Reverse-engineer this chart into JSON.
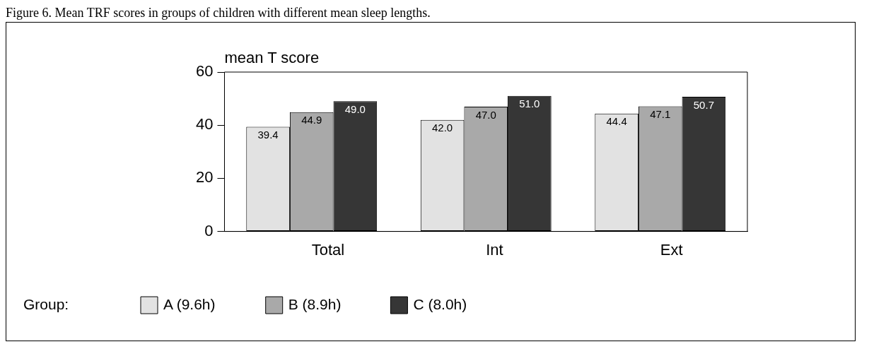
{
  "chart_data": {
    "type": "bar",
    "title": "Figure 6. Mean TRF scores in groups of children with different mean sleep lengths.",
    "ylabel": "mean T score",
    "categories": [
      "Total",
      "Int",
      "Ext"
    ],
    "series": [
      {
        "name": "A (9.6h)",
        "color": "#e2e2e2",
        "values": [
          39.4,
          42.0,
          44.4
        ],
        "value_labels": [
          "39.4",
          "42.0",
          "44.4"
        ]
      },
      {
        "name": "B (8.9h)",
        "color": "#a9a9a9",
        "values": [
          44.9,
          47.0,
          47.1
        ],
        "value_labels": [
          "44.9",
          "47.0",
          "47.1"
        ]
      },
      {
        "name": "C (8.0h)",
        "color": "#363636",
        "values": [
          49.0,
          51.0,
          50.7
        ],
        "value_labels": [
          "49.0",
          "51.0",
          "50.7"
        ]
      }
    ],
    "ylim": [
      0,
      60
    ],
    "yticks": [
      0,
      20,
      40,
      60
    ],
    "grid": false,
    "legend": "bottom",
    "legend_title": "Group:"
  }
}
